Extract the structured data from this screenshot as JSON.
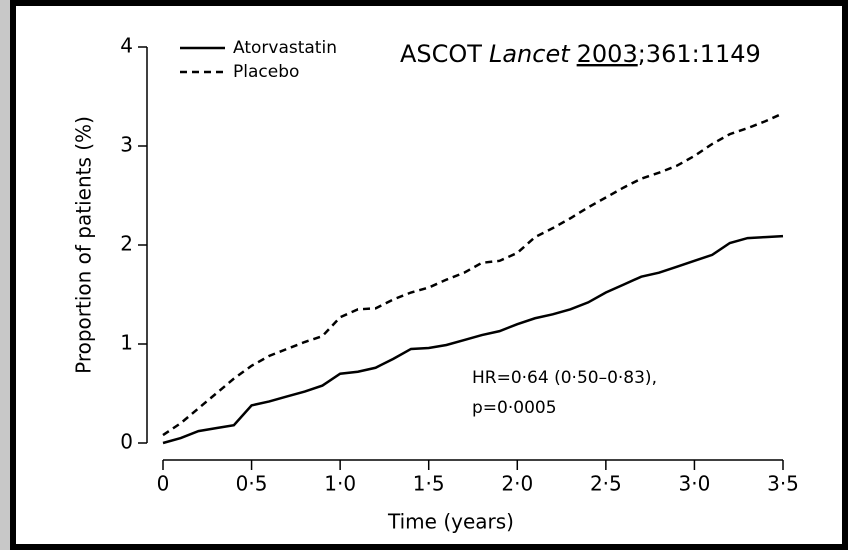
{
  "chart_data": {
    "type": "line",
    "source": [
      "ASCOT",
      "Lancet",
      "2003",
      ";361:1149"
    ],
    "annotation": [
      "HR=0·64 (0·50–0·83),",
      "p=0·0005"
    ],
    "x_label": "Time (years)",
    "y_label": "Proportion of patients (%)",
    "x": [
      0,
      0.1,
      0.2,
      0.3,
      0.4,
      0.5,
      0.6,
      0.7,
      0.8,
      0.9,
      1.0,
      1.1,
      1.2,
      1.3,
      1.4,
      1.5,
      1.6,
      1.7,
      1.8,
      1.9,
      2.0,
      2.1,
      2.2,
      2.3,
      2.4,
      2.5,
      2.6,
      2.7,
      2.8,
      2.9,
      3.0,
      3.1,
      3.2,
      3.3,
      3.4,
      3.5
    ],
    "series": [
      {
        "name": "Atorvastatin",
        "color": "#000000",
        "dash": "solid",
        "values": [
          0,
          0.05,
          0.12,
          0.15,
          0.18,
          0.38,
          0.42,
          0.47,
          0.52,
          0.58,
          0.7,
          0.72,
          0.76,
          0.85,
          0.95,
          0.96,
          0.99,
          1.04,
          1.09,
          1.13,
          1.2,
          1.26,
          1.3,
          1.35,
          1.42,
          1.52,
          1.6,
          1.68,
          1.72,
          1.78,
          1.84,
          1.9,
          2.02,
          2.07,
          2.08,
          2.09
        ]
      },
      {
        "name": "Placebo",
        "color": "#000000",
        "dash": "dashed",
        "values": [
          0.08,
          0.2,
          0.35,
          0.5,
          0.65,
          0.78,
          0.88,
          0.95,
          1.02,
          1.08,
          1.27,
          1.35,
          1.36,
          1.45,
          1.52,
          1.57,
          1.65,
          1.72,
          1.82,
          1.84,
          1.92,
          2.08,
          2.17,
          2.27,
          2.38,
          2.48,
          2.58,
          2.67,
          2.73,
          2.8,
          2.9,
          3.02,
          3.12,
          3.18,
          3.25,
          3.33
        ]
      }
    ],
    "xlim": [
      0,
      3.5
    ],
    "xticks": [
      0,
      {
        "value": 0.5,
        "label": "0·5"
      },
      {
        "value": 1,
        "label": "1·0"
      },
      {
        "value": 1.5,
        "label": "1·5"
      },
      {
        "value": 2,
        "label": "2·0"
      },
      {
        "value": 2.5,
        "label": "2·5"
      },
      {
        "value": 3,
        "label": "3·0"
      },
      {
        "value": 3.5,
        "label": "3·5"
      }
    ],
    "ylim": [
      0,
      4
    ],
    "yticks": [
      0,
      1,
      2,
      3,
      4
    ],
    "legend": "upper left",
    "grid": false
  }
}
